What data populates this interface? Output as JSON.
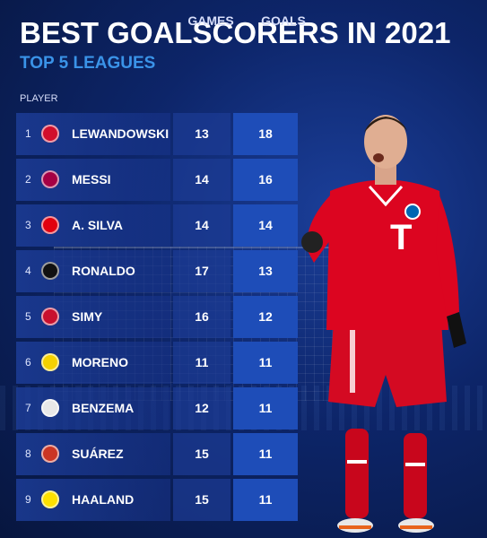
{
  "header": {
    "title": "BEST GOALSCORERS IN 2021",
    "subtitle": "TOP 5 LEAGUES"
  },
  "columns": {
    "player": "PLAYER",
    "games": "GAMES",
    "goals": "GOALS"
  },
  "rows": [
    {
      "rank": "1",
      "name": "LEWANDOWSKI",
      "games": "13",
      "goals": "18",
      "club_logo": "bayern-logo",
      "logo_color": "#d10e2c"
    },
    {
      "rank": "2",
      "name": "MESSI",
      "games": "14",
      "goals": "16",
      "club_logo": "barcelona-logo",
      "logo_color": "#a50044"
    },
    {
      "rank": "3",
      "name": "A. SILVA",
      "games": "14",
      "goals": "14",
      "club_logo": "frankfurt-logo",
      "logo_color": "#e1000f"
    },
    {
      "rank": "4",
      "name": "RONALDO",
      "games": "17",
      "goals": "13",
      "club_logo": "juventus-logo",
      "logo_color": "#111111"
    },
    {
      "rank": "5",
      "name": "SIMY",
      "games": "16",
      "goals": "12",
      "club_logo": "crotone-logo",
      "logo_color": "#c8102e"
    },
    {
      "rank": "6",
      "name": "MORENO",
      "games": "11",
      "goals": "11",
      "club_logo": "villarreal-logo",
      "logo_color": "#f5d100"
    },
    {
      "rank": "7",
      "name": "BENZEMA",
      "games": "12",
      "goals": "11",
      "club_logo": "real-madrid-logo",
      "logo_color": "#e8e8e8"
    },
    {
      "rank": "8",
      "name": "SUÁREZ",
      "games": "15",
      "goals": "11",
      "club_logo": "atletico-logo",
      "logo_color": "#cb3524"
    },
    {
      "rank": "9",
      "name": "HAALAND",
      "games": "15",
      "goals": "11",
      "club_logo": "dortmund-logo",
      "logo_color": "#fde100"
    }
  ],
  "colors": {
    "accent": "#3a93e8",
    "goals_cell": "#1e4db8",
    "kit_red": "#dc0520"
  }
}
